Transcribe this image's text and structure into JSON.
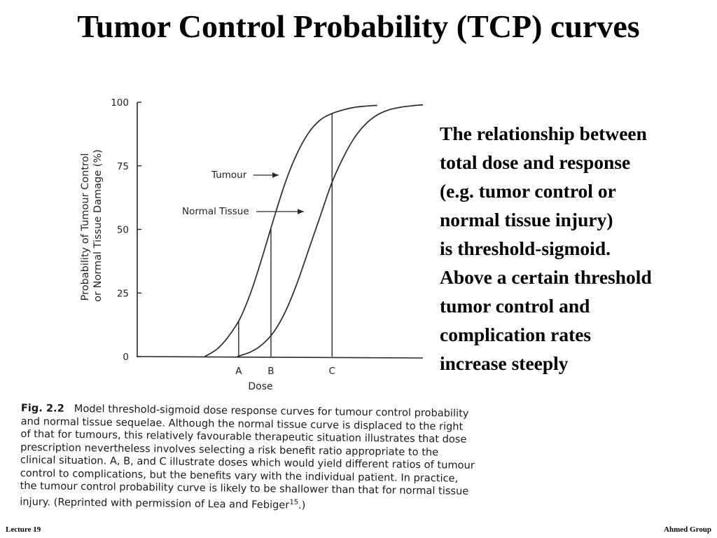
{
  "slide": {
    "title": "Tumor Control Probability (TCP) curves",
    "body_lines": [
      "The relationship between",
      "total dose and response",
      "(e.g. tumor control or",
      "normal tissue injury)",
      "is threshold-sigmoid.",
      "Above a certain threshold",
      "tumor control and",
      "complication rates",
      "increase steeply"
    ],
    "footer_left": "Lecture 19",
    "footer_right": "Ahmed Group"
  },
  "caption": {
    "label": "Fig. 2.2",
    "text": "Model threshold-sigmoid dose response curves for tumour control probability and normal tissue sequelae. Although the normal tissue curve is displaced to the right of that for tumours, this relatively favourable therapeutic situation illustrates that dose prescription nevertheless involves selecting a risk benefit ratio appropriate to the clinical situation. A, B, and C illustrate doses which would yield different ratios of tumour control to complications, but the benefits vary with the individual patient. In practice, the tumour control probability curve is likely to be shallower than that for normal tissue injury. (Reprinted with permission of Lea and Febiger",
    "ref_superscript": "15",
    "text_end": ".)"
  },
  "chart_data": {
    "type": "line",
    "xlabel": "Dose",
    "ylabel_line1": "Probability of Tumour Control",
    "ylabel_line2": "or Normal Tissue Damage (%)",
    "ylim": [
      0,
      100
    ],
    "xlim": [
      0,
      100
    ],
    "y_ticks": [
      "0",
      "25",
      "50",
      "75",
      "100"
    ],
    "y_tick_values": [
      0,
      25,
      50,
      75,
      100
    ],
    "x_tick_labels": [
      "A",
      "B",
      "C"
    ],
    "x_tick_values": [
      35.5,
      46.8,
      68.2
    ],
    "grid": false,
    "annotations": [
      {
        "text": "Tumour",
        "series": "Tumour"
      },
      {
        "text": "Normal Tissue",
        "series": "Normal Tissue"
      }
    ],
    "series": [
      {
        "name": "Tumour",
        "x": [
          23.6,
          28,
          32,
          36,
          40,
          44,
          48,
          52,
          56,
          60,
          64,
          68,
          72,
          76,
          80,
          84
        ],
        "y": [
          0,
          3,
          8,
          15,
          26,
          40,
          55,
          69,
          80,
          88,
          93,
          95.5,
          97,
          98,
          98.5,
          98.8
        ]
      },
      {
        "name": "Normal Tissue",
        "x": [
          35,
          40,
          44,
          48,
          52,
          56,
          60,
          64,
          68,
          72,
          76,
          80,
          84,
          88,
          92,
          96,
          100
        ],
        "y": [
          0,
          2,
          5,
          10,
          18,
          29,
          42,
          55,
          68,
          78,
          86,
          91.5,
          95,
          97,
          98,
          98.6,
          99
        ]
      }
    ],
    "drop_lines": [
      {
        "label": "A",
        "x": 35.5,
        "series": "Tumour"
      },
      {
        "label": "B",
        "x": 46.8,
        "series": "Tumour"
      },
      {
        "label": "C",
        "x": 68.2,
        "series": "Tumour"
      }
    ]
  }
}
